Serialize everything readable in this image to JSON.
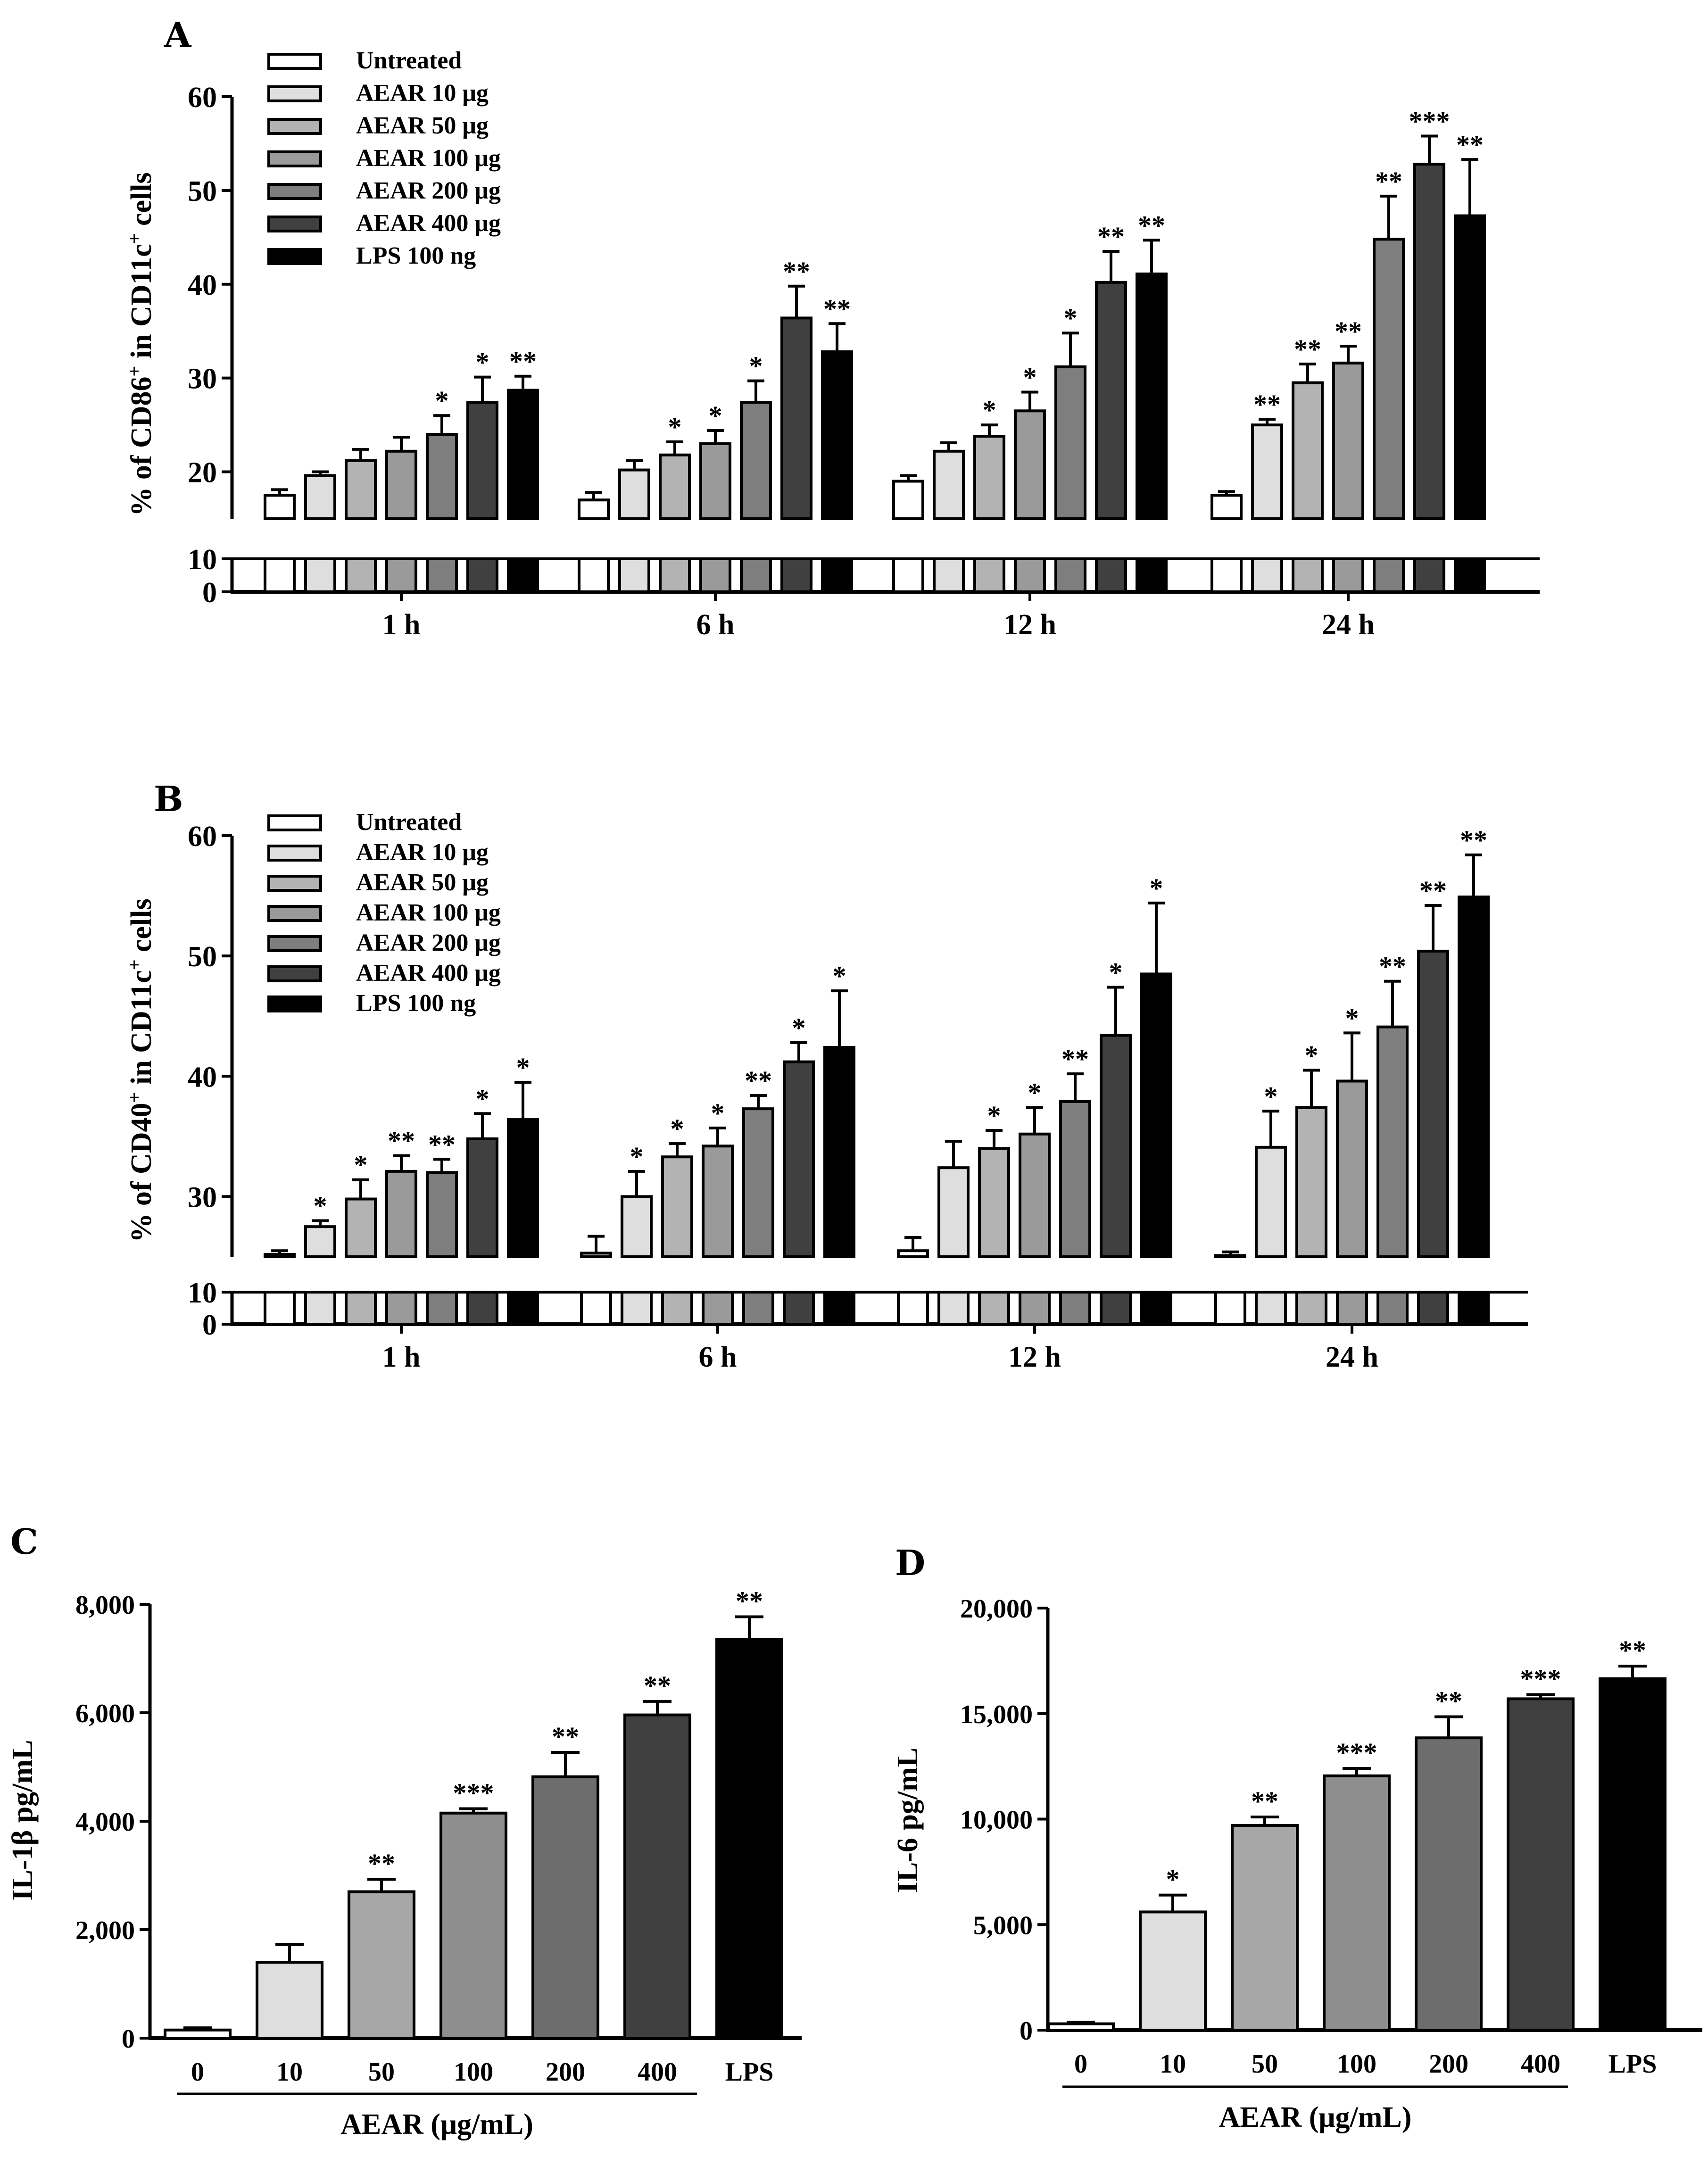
{
  "figure": {
    "panels": [
      "A",
      "B",
      "C",
      "D"
    ]
  },
  "colors": {
    "groups": [
      "#ffffff",
      "#dedede",
      "#b3b3b3",
      "#9a9a9a",
      "#7e7e7e",
      "#404040",
      "#000000"
    ],
    "cd_bars": [
      "#ffffff",
      "#dedede",
      "#a7a7a7",
      "#8e8e8e",
      "#6d6d6d",
      "#404040",
      "#000000"
    ]
  },
  "chart_data": [
    {
      "panel": "A",
      "type": "bar",
      "ylabel_parts": [
        "% of CD86",
        "+",
        " in CD11c",
        "+",
        " cells"
      ],
      "yticks": [
        "0",
        "10",
        "20",
        "30",
        "40",
        "50",
        "60"
      ],
      "categories": [
        "1 h",
        "6 h",
        "12 h",
        "24 h"
      ],
      "axis_break": [
        10,
        15
      ],
      "ylim": [
        15,
        60
      ],
      "series": [
        {
          "name": "Untreated",
          "values": [
            17.5,
            17.0,
            19.0,
            17.5
          ],
          "errors": [
            0.6,
            0.8,
            0.6,
            0.4
          ],
          "sig": [
            "",
            "",
            "",
            ""
          ]
        },
        {
          "name": "AEAR 10 μg",
          "values": [
            19.6,
            20.2,
            22.2,
            25.0
          ],
          "errors": [
            0.4,
            1.0,
            0.9,
            0.6
          ],
          "sig": [
            "",
            "",
            "",
            "**"
          ]
        },
        {
          "name": "AEAR 50 μg",
          "values": [
            21.2,
            21.8,
            23.8,
            29.5
          ],
          "errors": [
            1.2,
            1.4,
            1.2,
            2.0
          ],
          "sig": [
            "",
            "*",
            "*",
            "**"
          ]
        },
        {
          "name": "AEAR 100 μg",
          "values": [
            22.2,
            23.0,
            26.5,
            31.6
          ],
          "errors": [
            1.5,
            1.4,
            2.0,
            1.8
          ],
          "sig": [
            "",
            "*",
            "*",
            "**"
          ]
        },
        {
          "name": "AEAR 200 μg",
          "values": [
            24.0,
            27.4,
            31.2,
            44.8
          ],
          "errors": [
            2.0,
            2.3,
            3.6,
            4.6
          ],
          "sig": [
            "*",
            "*",
            "*",
            "**"
          ]
        },
        {
          "name": "AEAR 400 μg",
          "values": [
            27.4,
            36.4,
            40.2,
            52.8
          ],
          "errors": [
            2.7,
            3.4,
            3.3,
            3.0
          ],
          "sig": [
            "*",
            "**",
            "**",
            "***"
          ]
        },
        {
          "name": "LPS 100 ng",
          "values": [
            28.7,
            32.8,
            41.1,
            47.3
          ],
          "errors": [
            1.5,
            3.0,
            3.6,
            6.0
          ],
          "sig": [
            "**",
            "**",
            "**",
            "**"
          ]
        }
      ]
    },
    {
      "panel": "B",
      "type": "bar",
      "ylabel_parts": [
        "% of CD40",
        "+",
        " in CD11c",
        "+",
        " cells"
      ],
      "yticks": [
        "0",
        "10",
        "30",
        "40",
        "50",
        "60"
      ],
      "categories": [
        "1 h",
        "6 h",
        "12 h",
        "24 h"
      ],
      "axis_break": [
        10,
        25
      ],
      "ylim": [
        25,
        60
      ],
      "series": [
        {
          "name": "Untreated",
          "values": [
            25.2,
            25.3,
            25.5,
            25.1
          ],
          "errors": [
            0.3,
            1.4,
            1.1,
            0.3
          ],
          "sig": [
            "",
            "",
            "",
            ""
          ]
        },
        {
          "name": "AEAR 10 μg",
          "values": [
            27.5,
            30.0,
            32.4,
            34.1
          ],
          "errors": [
            0.5,
            2.1,
            2.2,
            3.0
          ],
          "sig": [
            "*",
            "*",
            "",
            "*"
          ]
        },
        {
          "name": "AEAR 50 μg",
          "values": [
            29.8,
            33.3,
            34.0,
            37.4
          ],
          "errors": [
            1.6,
            1.1,
            1.5,
            3.1
          ],
          "sig": [
            "*",
            "*",
            "*",
            "*"
          ]
        },
        {
          "name": "AEAR 100 μg",
          "values": [
            32.1,
            34.2,
            35.2,
            39.6
          ],
          "errors": [
            1.3,
            1.5,
            2.2,
            4.0
          ],
          "sig": [
            "**",
            "*",
            "*",
            "*"
          ]
        },
        {
          "name": "AEAR 200 μg",
          "values": [
            32.0,
            37.3,
            37.9,
            44.1
          ],
          "errors": [
            1.1,
            1.1,
            2.3,
            3.8
          ],
          "sig": [
            "**",
            "**",
            "**",
            "**"
          ]
        },
        {
          "name": "AEAR 400 μg",
          "values": [
            34.8,
            41.2,
            43.4,
            50.4
          ],
          "errors": [
            2.1,
            1.6,
            4.0,
            3.8
          ],
          "sig": [
            "*",
            "*",
            "*",
            "**"
          ]
        },
        {
          "name": "LPS 100 ng",
          "values": [
            36.4,
            42.4,
            48.5,
            54.9
          ],
          "errors": [
            3.1,
            4.7,
            5.9,
            3.5
          ],
          "sig": [
            "*",
            "*",
            "*",
            "**"
          ]
        }
      ]
    },
    {
      "panel": "C",
      "type": "bar",
      "ylabel": "IL-1β pg/mL",
      "xlabel": "AEAR  (μg/mL)",
      "categories": [
        "0",
        "10",
        "50",
        "100",
        "200",
        "400",
        "LPS"
      ],
      "yticks": [
        "0",
        "2,000",
        "4,000",
        "6,000",
        "8,000"
      ],
      "ylim": [
        0,
        8000
      ],
      "values": [
        150,
        1400,
        2700,
        4150,
        4820,
        5960,
        7350
      ],
      "errors": [
        40,
        330,
        230,
        80,
        450,
        250,
        420
      ],
      "sig": [
        "",
        "",
        "**",
        "***",
        "**",
        "**",
        "**"
      ]
    },
    {
      "panel": "D",
      "type": "bar",
      "ylabel": "IL-6 pg/mL",
      "xlabel": "AEAR  (μg/mL)",
      "categories": [
        "0",
        "10",
        "50",
        "100",
        "200",
        "400",
        "LPS"
      ],
      "yticks": [
        "0",
        "5,000",
        "10,000",
        "15,000",
        "20,000"
      ],
      "ylim": [
        0,
        20000
      ],
      "values": [
        300,
        5600,
        9700,
        12050,
        13850,
        15700,
        16650
      ],
      "errors": [
        80,
        800,
        400,
        350,
        1000,
        200,
        600
      ],
      "sig": [
        "",
        "*",
        "**",
        "***",
        "**",
        "***",
        "**"
      ]
    }
  ]
}
